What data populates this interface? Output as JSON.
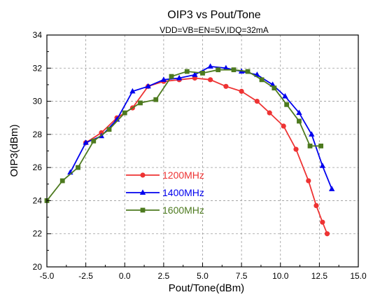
{
  "chart_data": {
    "type": "line",
    "title": "OIP3 vs Pout/Tone",
    "subtitle": "VDD=VB=EN=5V,IDQ=32mA",
    "xlabel": "Pout/Tone(dBm)",
    "ylabel": "OIP3(dBm)",
    "xlim": [
      -5.0,
      15.0
    ],
    "ylim": [
      20,
      34
    ],
    "xticks": [
      -5.0,
      -2.5,
      0.0,
      2.5,
      5.0,
      7.5,
      10.0,
      12.5,
      15.0
    ],
    "xtick_labels": [
      "-5.0",
      "-2.5",
      "0.0",
      "2.5",
      "5.0",
      "7.5",
      "10.0",
      "12.5",
      "15.0"
    ],
    "yticks": [
      20,
      22,
      24,
      26,
      28,
      30,
      32,
      34
    ],
    "ytick_labels": [
      "20",
      "22",
      "24",
      "26",
      "28",
      "30",
      "32",
      "34"
    ],
    "grid": true,
    "legend_position": "lower-left",
    "series": [
      {
        "name": "1200MHz",
        "color": "#ee3333",
        "marker": "circle",
        "x": [
          -2.5,
          -1.5,
          -0.5,
          0.5,
          1.5,
          2.5,
          3.5,
          4.5,
          5.5,
          6.5,
          7.5,
          8.5,
          9.3,
          10.2,
          11.0,
          11.8,
          12.3,
          12.7,
          13.0
        ],
        "y": [
          27.5,
          28.1,
          29.0,
          29.6,
          30.9,
          31.2,
          31.3,
          31.4,
          31.3,
          30.9,
          30.6,
          30.0,
          29.3,
          28.5,
          27.1,
          25.2,
          23.7,
          22.7,
          22.0
        ]
      },
      {
        "name": "1400MHz",
        "color": "#0000ee",
        "marker": "triangle",
        "x": [
          -3.5,
          -2.5,
          -1.5,
          -0.5,
          0.5,
          1.5,
          2.5,
          3.5,
          4.5,
          5.5,
          6.5,
          7.5,
          8.5,
          9.5,
          10.3,
          11.2,
          12.0,
          12.7,
          13.3
        ],
        "y": [
          25.7,
          27.5,
          27.9,
          28.9,
          30.6,
          30.9,
          31.3,
          31.4,
          31.6,
          32.1,
          32.0,
          31.8,
          31.6,
          31.0,
          30.3,
          29.3,
          28.0,
          26.1,
          24.7
        ]
      },
      {
        "name": "1600MHz",
        "color": "#4d7a1f",
        "marker": "square",
        "x": [
          -5.0,
          -4.0,
          -3.0,
          -2.0,
          -1.0,
          0.0,
          1.0,
          2.0,
          3.0,
          4.0,
          5.0,
          6.0,
          7.0,
          7.9,
          8.8,
          9.6,
          10.4,
          11.2,
          11.9,
          12.6
        ],
        "y": [
          24.0,
          25.2,
          26.0,
          27.6,
          28.3,
          29.3,
          29.9,
          30.1,
          31.5,
          31.8,
          31.7,
          31.9,
          31.9,
          31.8,
          31.3,
          30.8,
          29.8,
          28.8,
          27.3,
          27.3
        ]
      }
    ]
  }
}
